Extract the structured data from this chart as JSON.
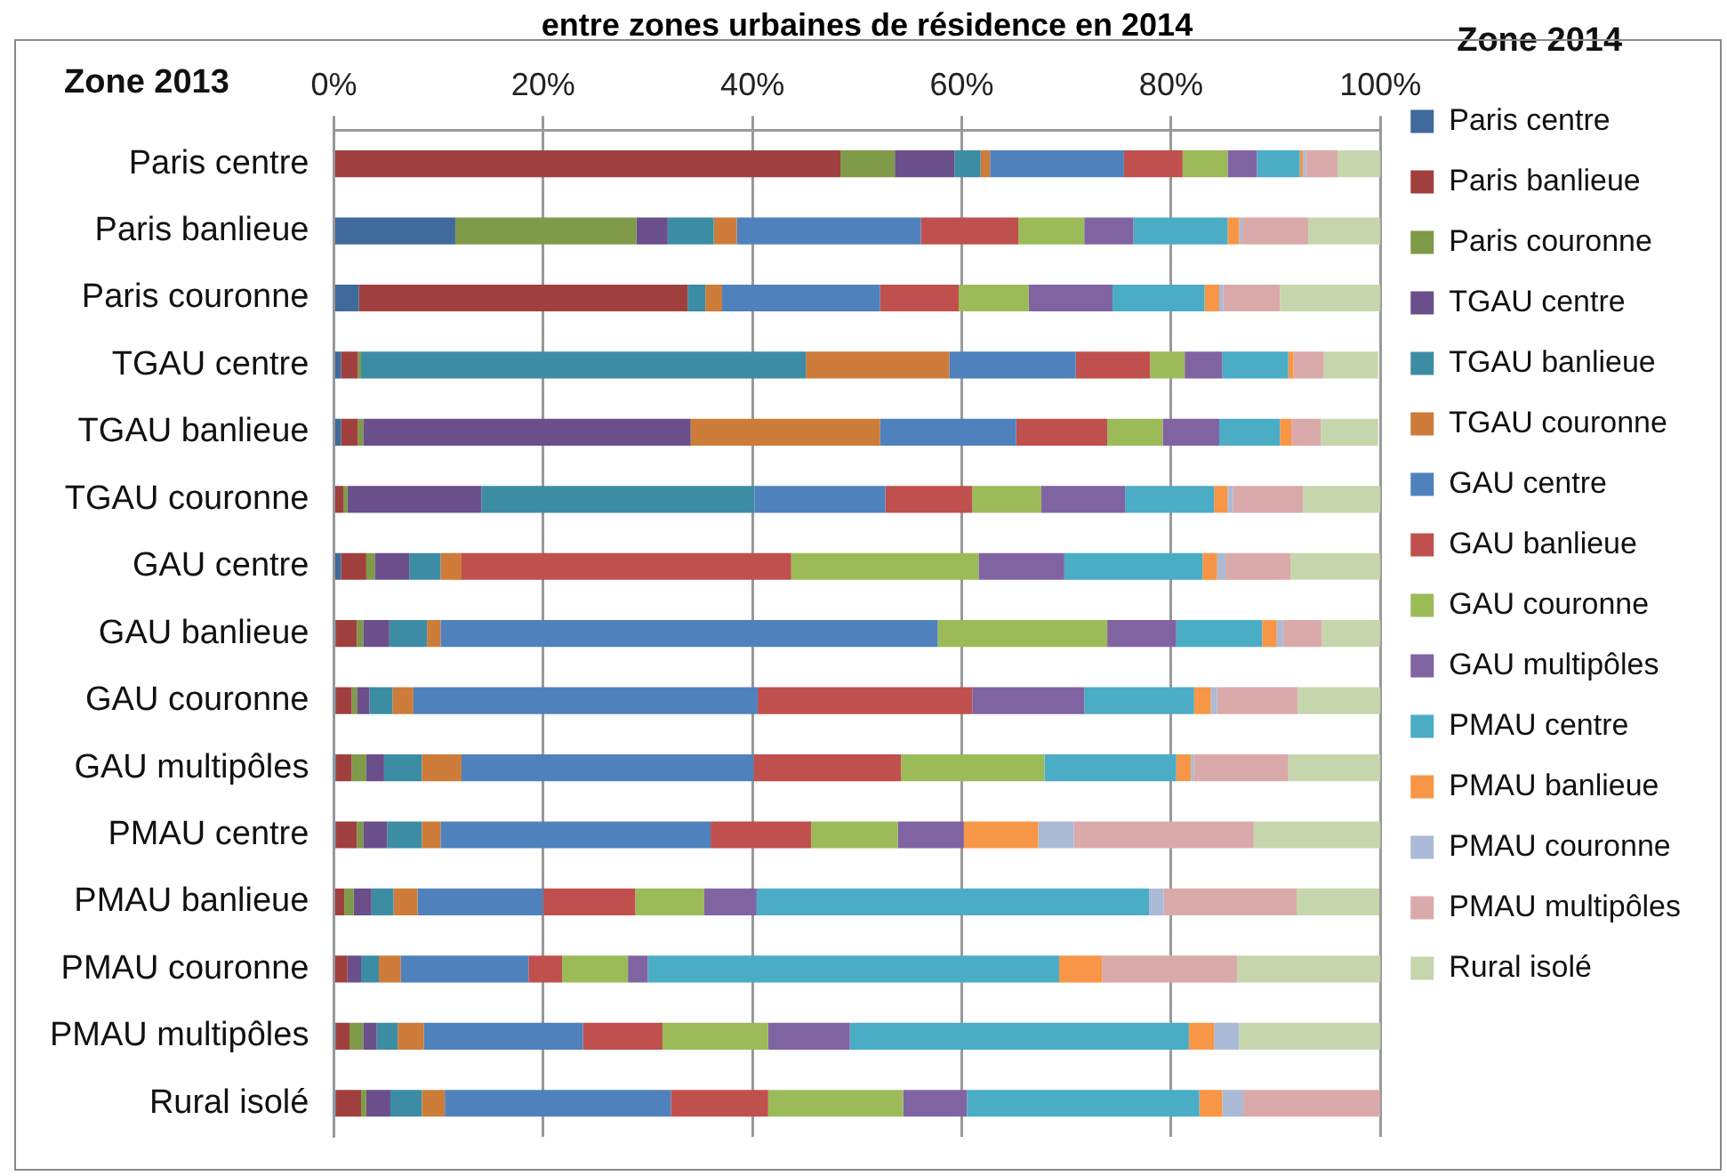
{
  "chart_data": {
    "type": "bar",
    "orientation": "horizontal",
    "stacked": true,
    "title": "entre zones urbaines de résidence en 2014",
    "ylabel": "Zone 2013",
    "legend_title": "Zone 2014",
    "categories": [
      "Paris centre",
      "Paris banlieue",
      "Paris couronne",
      "TGAU centre",
      "TGAU banlieue",
      "TGAU couronne",
      "GAU centre",
      "GAU banlieue",
      "GAU couronne",
      "GAU multipôles",
      "PMAU centre",
      "PMAU banlieue",
      "PMAU couronne",
      "PMAU multipôles",
      "Rural isolé"
    ],
    "series": [
      {
        "name": "Paris centre",
        "color": "#3f6a9b",
        "values": [
          0,
          11.6,
          2.4,
          0.7,
          0.7,
          0,
          0.7,
          0.2,
          0.2,
          0.2,
          0.2,
          null,
          0,
          0.2,
          0.2
        ]
      },
      {
        "name": "Paris banlieue",
        "color": "#a0403e",
        "values": [
          48.4,
          0,
          31.4,
          1.6,
          1.6,
          0.9,
          2.4,
          2.0,
          1.5,
          1.5,
          2.0,
          1.0,
          1.3,
          1.3,
          2.4
        ]
      },
      {
        "name": "Paris couronne",
        "color": "#7f9a48",
        "values": [
          5.2,
          17.3,
          0,
          0.3,
          0.5,
          0.4,
          0.8,
          0.6,
          0.5,
          1.4,
          0.6,
          0.9,
          0,
          1.3,
          0.5
        ]
      },
      {
        "name": "TGAU centre",
        "color": "#6a4f8a",
        "values": [
          5.7,
          3.0,
          0,
          0,
          31.3,
          12.8,
          3.3,
          2.5,
          1.2,
          1.7,
          2.3,
          1.7,
          1.3,
          1.3,
          2.3
        ]
      },
      {
        "name": "TGAU banlieue",
        "color": "#3c8da3",
        "values": [
          2.5,
          4.4,
          1.7,
          42.5,
          0,
          26.1,
          3.0,
          3.6,
          2.2,
          3.6,
          3.3,
          2.1,
          1.7,
          2.0,
          3.0
        ]
      },
      {
        "name": "TGAU couronne",
        "color": "#cd7c3a",
        "values": [
          0.9,
          2.2,
          1.6,
          13.7,
          18.1,
          0,
          2.0,
          1.3,
          2.0,
          3.8,
          1.8,
          2.3,
          2.1,
          2.5,
          2.2
        ]
      },
      {
        "name": "GAU centre",
        "color": "#4f81bd",
        "values": [
          12.8,
          17.6,
          15.1,
          12.1,
          13.0,
          12.5,
          0,
          47.5,
          32.9,
          27.9,
          25.8,
          12.0,
          12.2,
          15.2,
          21.6
        ]
      },
      {
        "name": "GAU banlieue",
        "color": "#c0504d",
        "values": [
          5.6,
          9.3,
          7.5,
          7.1,
          8.7,
          8.3,
          31.5,
          0,
          20.5,
          14.1,
          9.6,
          8.8,
          3.2,
          7.6,
          9.3
        ]
      },
      {
        "name": "GAU couronne",
        "color": "#9bbb59",
        "values": [
          4.3,
          6.3,
          6.7,
          3.3,
          5.3,
          6.6,
          17.9,
          16.2,
          0,
          13.7,
          8.3,
          6.6,
          6.3,
          10.1,
          12.9
        ]
      },
      {
        "name": "GAU multipôles",
        "color": "#8064a2",
        "values": [
          2.8,
          4.7,
          8.0,
          3.6,
          5.4,
          8.0,
          8.2,
          6.6,
          10.7,
          0,
          6.3,
          5.0,
          1.9,
          7.8,
          6.1
        ]
      },
      {
        "name": "PMAU centre",
        "color": "#4bacc6",
        "values": [
          4.1,
          9.0,
          8.8,
          6.3,
          5.8,
          8.5,
          13.2,
          8.2,
          10.5,
          12.6,
          0,
          37.5,
          39.3,
          32.4,
          22.2
        ]
      },
      {
        "name": "PMAU banlieue",
        "color": "#f79646",
        "values": [
          0.3,
          1.1,
          1.4,
          0.5,
          1.1,
          1.3,
          1.4,
          1.4,
          1.6,
          1.4,
          7.1,
          0,
          4.1,
          2.4,
          2.2
        ]
      },
      {
        "name": "PMAU couronne",
        "color": "#aabad7",
        "values": [
          0.3,
          0.3,
          0.4,
          null,
          null,
          0.5,
          0.8,
          0.6,
          0.6,
          0.3,
          3.4,
          1.4,
          0,
          2.4,
          2.0
        ]
      },
      {
        "name": "PMAU multipôles",
        "color": "#d9aaa9",
        "values": [
          3.0,
          6.3,
          5.4,
          2.9,
          2.8,
          6.7,
          6.2,
          3.7,
          7.7,
          9.0,
          17.2,
          12.7,
          12.9,
          0,
          13.1
        ]
      },
      {
        "name": "Rural isolé",
        "color": "#c6d6ac",
        "values": [
          4.1,
          6.9,
          9.6,
          5.2,
          5.5,
          7.4,
          8.6,
          5.6,
          7.9,
          8.8,
          12.1,
          7.9,
          13.7,
          13.5,
          0
        ]
      }
    ],
    "xlim": [
      0,
      100
    ],
    "xticks": [
      {
        "value": 0,
        "label": "0%"
      },
      {
        "value": 20,
        "label": "20%"
      },
      {
        "value": 40,
        "label": "40%"
      },
      {
        "value": 60,
        "label": "60%"
      },
      {
        "value": 80,
        "label": "80%"
      },
      {
        "value": 100,
        "label": "100%"
      }
    ],
    "grid": "x",
    "legend": "right"
  }
}
